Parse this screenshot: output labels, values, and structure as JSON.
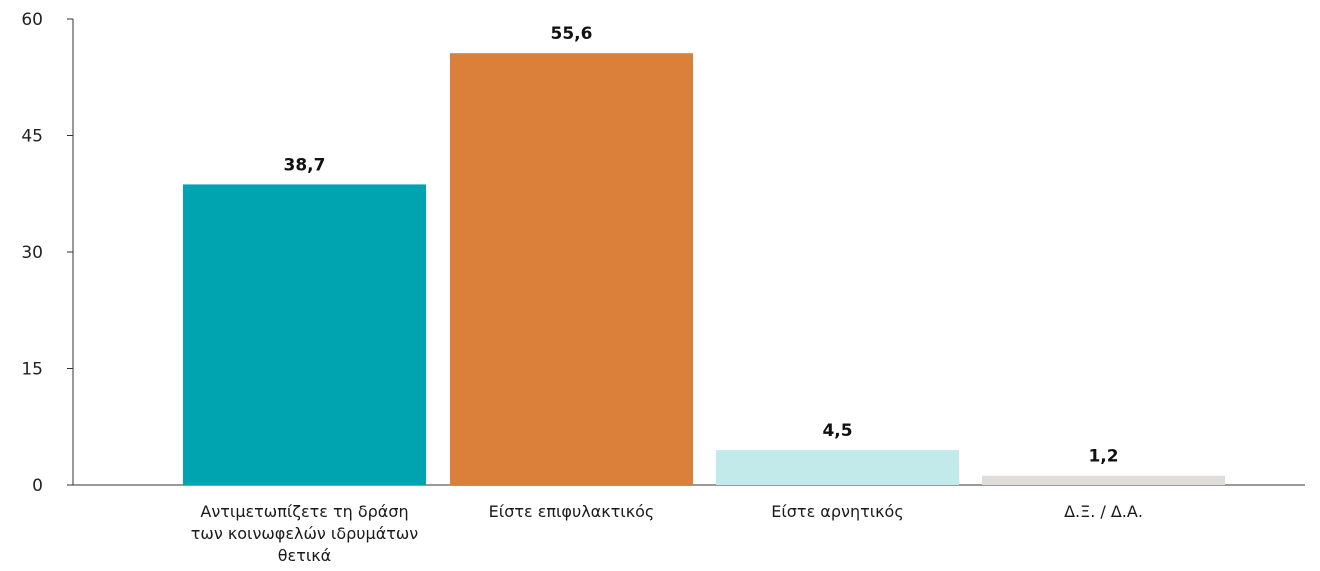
{
  "chart_data": {
    "type": "bar",
    "title": "",
    "xlabel": "",
    "ylabel": "",
    "ylim": [
      0,
      60
    ],
    "yticks": [
      0,
      15,
      30,
      45,
      60
    ],
    "grid": false,
    "categories": [
      "Αντιμετωπίζετε τη δράση των κοινωφελών ιδρυμάτων θετικά",
      "Είστε επιφυλακτικός",
      "Είστε αρνητικός",
      "Δ.Ξ. / Δ.Α."
    ],
    "category_label_lines": [
      [
        "Αντιμετωπίζετε τη δράση",
        "των κοινωφελών ιδρυμάτων",
        "θετικά"
      ],
      [
        "Είστε επιφυλακτικός"
      ],
      [
        "Είστε αρνητικός"
      ],
      [
        "Δ.Ξ. / Δ.Α."
      ]
    ],
    "values": [
      38.7,
      55.6,
      4.5,
      1.2
    ],
    "value_labels": [
      "38,7",
      "55,6",
      "4,5",
      "1,2"
    ],
    "colors": [
      "#00a3b0",
      "#db803b",
      "#c2eaeb",
      "#e0dcd7"
    ]
  }
}
